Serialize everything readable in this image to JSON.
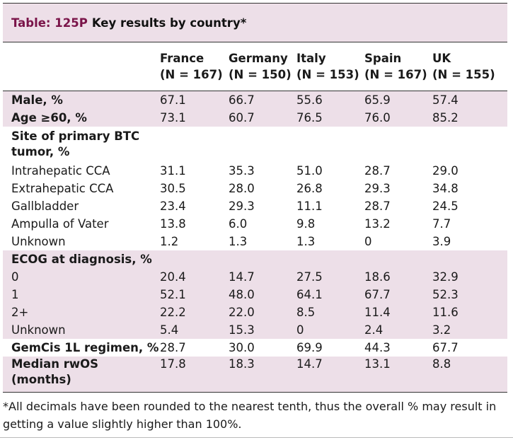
{
  "table": {
    "label": "Table: 125P",
    "title": "Key results by country*",
    "columns": [
      {
        "name": "France",
        "n": "(N = 167)"
      },
      {
        "name": "Germany",
        "n": "(N = 150)"
      },
      {
        "name": "Italy",
        "n": "(N = 153)"
      },
      {
        "name": "Spain",
        "n": "(N = 167)"
      },
      {
        "name": "UK",
        "n": "(N = 155)"
      }
    ],
    "rows": [
      {
        "label": "Male, %",
        "values": [
          "67.1",
          "66.7",
          "55.6",
          "65.9",
          "57.4"
        ]
      },
      {
        "label": "Age ≥60, %",
        "values": [
          "73.1",
          "60.7",
          "76.5",
          "76.0",
          "85.2"
        ]
      },
      {
        "label": "Site of primary BTC tumor, %",
        "values": [
          "",
          "",
          "",
          "",
          ""
        ]
      },
      {
        "label": "Intrahepatic CCA",
        "values": [
          "31.1",
          "35.3",
          "51.0",
          "28.7",
          "29.0"
        ]
      },
      {
        "label": "Extrahepatic CCA",
        "values": [
          "30.5",
          "28.0",
          "26.8",
          "29.3",
          "34.8"
        ]
      },
      {
        "label": "Gallbladder",
        "values": [
          "23.4",
          "29.3",
          "11.1",
          "28.7",
          "24.5"
        ]
      },
      {
        "label": "Ampulla of Vater",
        "values": [
          "13.8",
          "6.0",
          "9.8",
          "13.2",
          "7.7"
        ]
      },
      {
        "label": "Unknown",
        "values": [
          "1.2",
          "1.3",
          "1.3",
          "0",
          "3.9"
        ]
      },
      {
        "label": "ECOG at diagnosis, %",
        "values": [
          "",
          "",
          "",
          "",
          ""
        ]
      },
      {
        "label": "0",
        "values": [
          "20.4",
          "14.7",
          "27.5",
          "18.6",
          "32.9"
        ]
      },
      {
        "label": "1",
        "values": [
          "52.1",
          "48.0",
          "64.1",
          "67.7",
          "52.3"
        ]
      },
      {
        "label": "2+",
        "values": [
          "22.2",
          "22.0",
          "8.5",
          "11.4",
          "11.6"
        ]
      },
      {
        "label": "Unknown",
        "values": [
          "5.4",
          "15.3",
          "0",
          "2.4",
          "3.2"
        ]
      },
      {
        "label": "GemCis 1L regimen, %",
        "values": [
          "28.7",
          "30.0",
          "69.9",
          "44.3",
          "67.7"
        ]
      },
      {
        "label": "Median rwOS (months)",
        "values": [
          "17.8",
          "18.3",
          "14.7",
          "13.1",
          "8.8"
        ]
      }
    ],
    "footnote": "*All decimals have been rounded to the nearest tenth, thus the overall % may result in getting a value slightly higher than 100%."
  }
}
